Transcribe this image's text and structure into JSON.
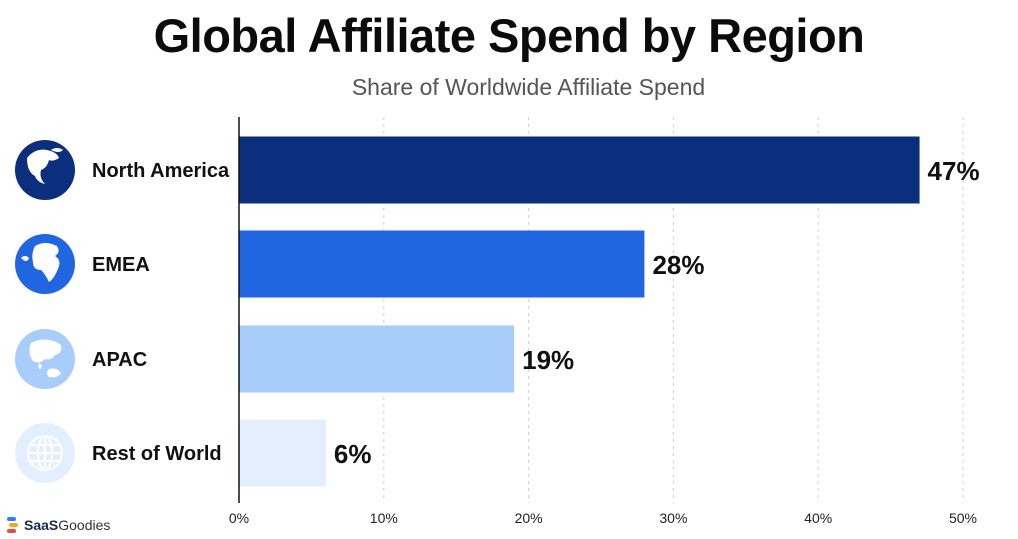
{
  "chart_data": {
    "type": "bar",
    "orientation": "horizontal",
    "title": "Global Affiliate Spend by Region",
    "subtitle": "Share of Worldwide Affiliate Spend",
    "xlabel": "",
    "ylabel": "",
    "xlim": [
      0,
      50
    ],
    "ticks": [
      0,
      10,
      20,
      30,
      40,
      50
    ],
    "tick_labels": [
      "0%",
      "10%",
      "20%",
      "30%",
      "40%",
      "50%"
    ],
    "grid": "vertical-dashed",
    "categories": [
      "North America",
      "EMEA",
      "APAC",
      "Rest of World"
    ],
    "values": [
      47,
      28,
      19,
      6
    ],
    "value_labels": [
      "47%",
      "28%",
      "19%",
      "6%"
    ],
    "colors": [
      "#0c2f7d",
      "#1f66e0",
      "#a9cdfa",
      "#e3efff"
    ],
    "icons": [
      "globe-americas-icon",
      "globe-emea-icon",
      "globe-asia-pacific-icon",
      "globe-grid-icon"
    ],
    "icon_colors": [
      "#0c2f7d",
      "#1f66e0",
      "#a9cdfa",
      "#e3efff"
    ]
  },
  "brand": {
    "text": "SaaSGoodies",
    "colors": [
      "#e74c3c",
      "#f5a623",
      "#2f80ed"
    ]
  }
}
